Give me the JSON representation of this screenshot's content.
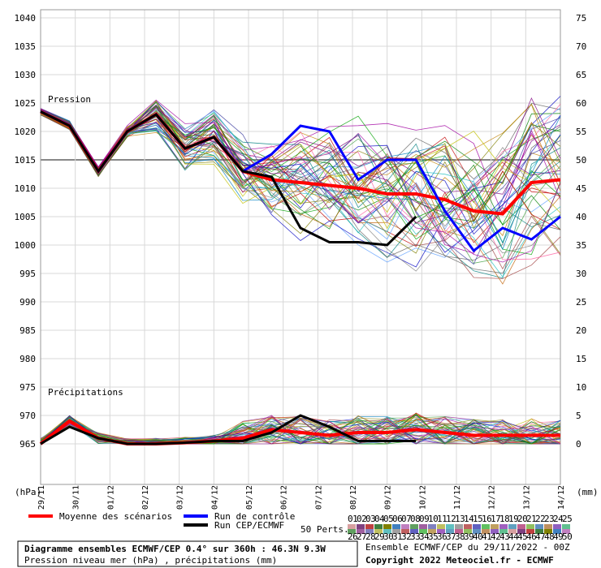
{
  "chart_data": {
    "type": "line",
    "title": "Diagramme ensembles ECMWF/CEP 0.4° sur 360h : 46.3N 9.3W",
    "subtitle": "Pression niveau mer (hPa) , précipitations (mm)",
    "pressure_label": "Pression",
    "precip_label": "Précipitations",
    "left_unit": "(hPa)",
    "right_unit": "(mm)",
    "left_axis": {
      "min": 965,
      "max": 1040,
      "ticks": [
        1040,
        1035,
        1030,
        1025,
        1020,
        1015,
        1010,
        1005,
        1000,
        995,
        990,
        985,
        980,
        975,
        970,
        965
      ]
    },
    "right_axis": {
      "min": 0,
      "max": 75,
      "ticks": [
        75,
        70,
        65,
        60,
        55,
        50,
        45,
        40,
        35,
        30,
        25,
        20,
        15,
        10,
        5,
        0
      ]
    },
    "x_ticks": [
      "29/11",
      "30/11",
      "01/12",
      "02/12",
      "03/12",
      "04/12",
      "05/12",
      "06/12",
      "07/12",
      "08/12",
      "09/12",
      "10/12",
      "11/12",
      "12/12",
      "13/12",
      "14/12"
    ],
    "grid": true,
    "series": [
      {
        "name": "Moyenne des scénarios",
        "color": "#ff0000",
        "values": [
          1023.5,
          1021,
          1013,
          1020,
          1023,
          1017,
          1019,
          1013,
          1011.5,
          1011,
          1010.5,
          1010,
          1009,
          1009,
          1008,
          1006,
          1005.5,
          1011,
          1011.5
        ],
        "precip": [
          0,
          4,
          1,
          0,
          0,
          0.2,
          0.5,
          1,
          2.5,
          2,
          1.5,
          2,
          2,
          2.5,
          2,
          1.5,
          1.5,
          1.5,
          1.5
        ]
      },
      {
        "name": "Run de contrôle",
        "color": "#0000ff",
        "values": [
          1023.5,
          1021,
          1013,
          1020,
          1023,
          1017,
          1019,
          1013,
          1016,
          1021,
          1020,
          1011.5,
          1015,
          1015,
          1006,
          999,
          1003,
          1001,
          1005
        ]
      },
      {
        "name": "Run CEP/ECMWF",
        "color": "#000000",
        "values": [
          1023.5,
          1021,
          1013,
          1020,
          1023,
          1017,
          1019,
          1013,
          1012,
          1003,
          1000.5,
          1000.5,
          1000,
          1005
        ],
        "precip": [
          0,
          3,
          1,
          0,
          0,
          0.2,
          0.5,
          0.5,
          2,
          5,
          3,
          0.5,
          0.5,
          0.5
        ]
      }
    ],
    "legend": {
      "mean": "Moyenne des scénarios",
      "control": "Run de contrôle",
      "cep": "Run CEP/ECMWF",
      "perts": "50 Perts.",
      "pert_row1": [
        "01",
        "02",
        "03",
        "04",
        "05",
        "06",
        "07",
        "08",
        "09",
        "10",
        "11",
        "12",
        "13",
        "14",
        "15",
        "16",
        "17",
        "18",
        "19",
        "20",
        "21",
        "22",
        "23",
        "24",
        "25"
      ],
      "pert_row2": [
        "26",
        "27",
        "28",
        "29",
        "30",
        "31",
        "32",
        "33",
        "34",
        "35",
        "36",
        "37",
        "38",
        "39",
        "40",
        "41",
        "42",
        "43",
        "44",
        "45",
        "46",
        "47",
        "48",
        "49",
        "50"
      ]
    },
    "footer": {
      "ensemble": "Ensemble ECMWF/CEP du 29/11/2022 - 00Z",
      "copyright": "Copyright 2022 Meteociel.fr - ECMWF"
    }
  }
}
